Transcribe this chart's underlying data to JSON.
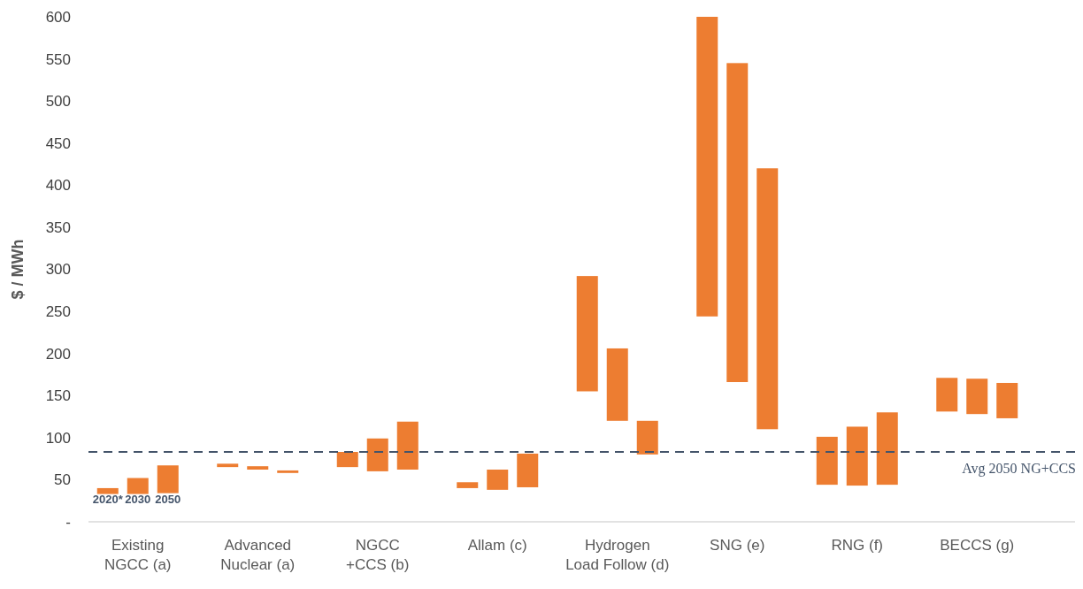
{
  "chart_data": {
    "type": "bar",
    "ylabel": "$ / MWh",
    "categories": [
      "Existing NGCC (a)",
      "Advanced Nuclear (a)",
      "NGCC +CCS (b)",
      "Allam (c)",
      "Hydrogen Load Follow (d)",
      "SNG (e)",
      "RNG (f)",
      "BECCS (g)"
    ],
    "series": [
      {
        "name": "2020*",
        "color": "#ed7d31",
        "base": [
          33,
          65,
          65,
          40,
          155,
          244,
          44,
          131
        ],
        "values": [
          7,
          4,
          18,
          7,
          137,
          356,
          57,
          40
        ]
      },
      {
        "name": "2030",
        "color": "#ed7d31",
        "base": [
          33,
          62,
          60,
          38,
          120,
          166,
          43,
          128
        ],
        "values": [
          19,
          4,
          39,
          24,
          86,
          379,
          70,
          42
        ]
      },
      {
        "name": "2050",
        "color": "#ed7d31",
        "base": [
          34,
          58,
          62,
          41,
          80,
          110,
          44,
          123
        ],
        "values": [
          33,
          3,
          57,
          40,
          40,
          310,
          86,
          42
        ]
      }
    ],
    "ylim": [
      0,
      600
    ],
    "yticks": [
      {
        "value": 0,
        "label": "-"
      },
      50,
      100,
      150,
      200,
      250,
      300,
      350,
      400,
      450,
      500,
      550,
      600
    ],
    "ref_lines": [
      {
        "axis": "y",
        "value": 83,
        "label": "Avg 2050 NG+CCS",
        "color": "#44546a",
        "line_style": "dashed"
      }
    ],
    "grid": false,
    "legend": false
  }
}
